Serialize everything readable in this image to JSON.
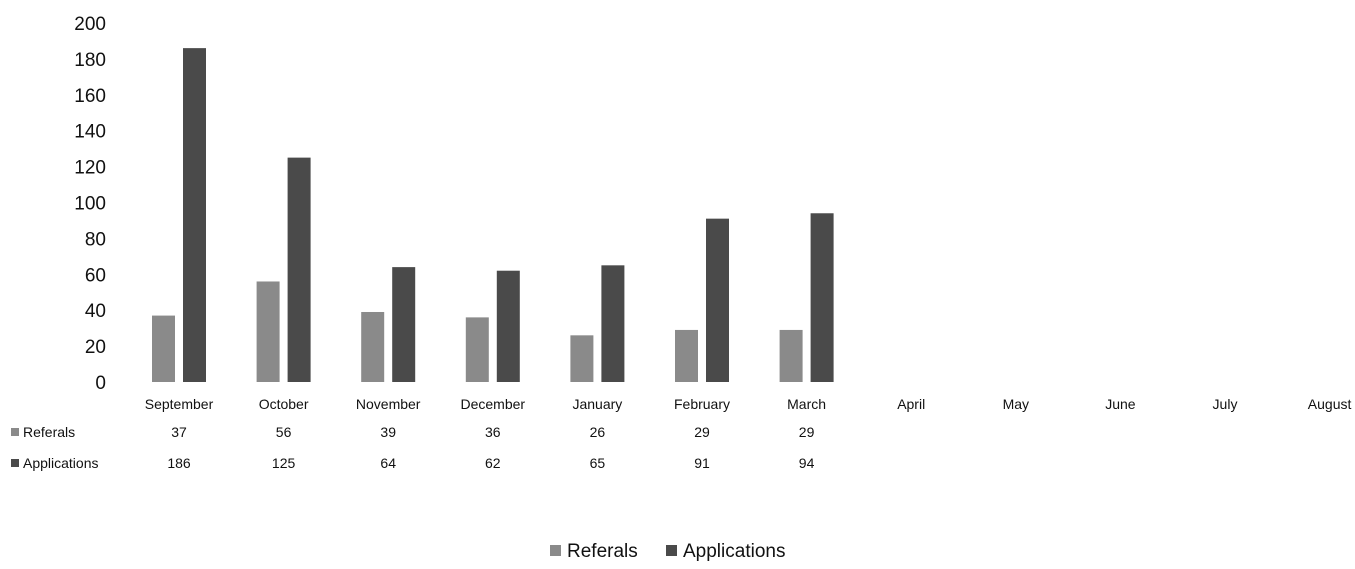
{
  "chart_data": {
    "type": "bar",
    "categories": [
      "September",
      "October",
      "November",
      "December",
      "January",
      "February",
      "March",
      "April",
      "May",
      "June",
      "July",
      "August"
    ],
    "series": [
      {
        "name": "Referals",
        "values": [
          37,
          56,
          39,
          36,
          26,
          29,
          29,
          null,
          null,
          null,
          null,
          null
        ],
        "color": "#8a8a8a"
      },
      {
        "name": "Applications",
        "values": [
          186,
          125,
          64,
          62,
          65,
          91,
          94,
          null,
          null,
          null,
          null,
          null
        ],
        "color": "#4a4a4a"
      }
    ],
    "yticks": [
      "0",
      "20",
      "40",
      "60",
      "80",
      "100",
      "120",
      "140",
      "160",
      "180",
      "200"
    ],
    "ylim": [
      0,
      200
    ],
    "grid": false,
    "data_table": true,
    "legend_position": "bottom"
  }
}
